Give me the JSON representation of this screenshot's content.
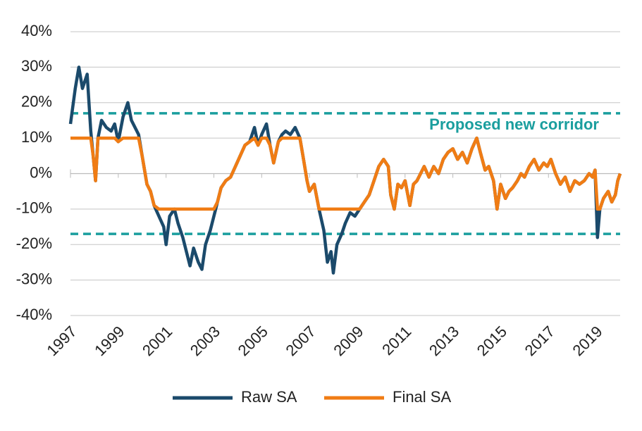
{
  "chart_data": {
    "type": "line",
    "x": [
      1997.0,
      1997.2,
      1997.35,
      1997.5,
      1997.7,
      1997.85,
      1997.95,
      1998.05,
      1998.15,
      1998.3,
      1998.5,
      1998.7,
      1998.85,
      1999.0,
      1999.2,
      1999.4,
      1999.55,
      1999.7,
      1999.85,
      2000.0,
      2000.2,
      2000.35,
      2000.5,
      2000.7,
      2000.9,
      2001.0,
      2001.15,
      2001.35,
      2001.5,
      2001.7,
      2001.85,
      2002.0,
      2002.15,
      2002.35,
      2002.5,
      2002.65,
      2002.85,
      2003.0,
      2003.15,
      2003.3,
      2003.5,
      2003.7,
      2003.9,
      2004.1,
      2004.3,
      2004.5,
      2004.7,
      2004.85,
      2005.0,
      2005.2,
      2005.35,
      2005.5,
      2005.7,
      2005.85,
      2006.0,
      2006.2,
      2006.4,
      2006.6,
      2006.75,
      2006.9,
      2007.0,
      2007.2,
      2007.4,
      2007.6,
      2007.75,
      2007.9,
      2008.0,
      2008.15,
      2008.35,
      2008.5,
      2008.7,
      2008.9,
      2009.1,
      2009.3,
      2009.5,
      2009.7,
      2009.9,
      2010.1,
      2010.3,
      2010.4,
      2010.55,
      2010.7,
      2010.85,
      2011.0,
      2011.2,
      2011.35,
      2011.5,
      2011.65,
      2011.8,
      2012.0,
      2012.2,
      2012.4,
      2012.6,
      2012.8,
      2013.0,
      2013.2,
      2013.4,
      2013.6,
      2013.8,
      2014.0,
      2014.15,
      2014.35,
      2014.5,
      2014.7,
      2014.85,
      2015.0,
      2015.2,
      2015.35,
      2015.5,
      2015.7,
      2015.85,
      2016.0,
      2016.2,
      2016.4,
      2016.6,
      2016.8,
      2016.95,
      2017.1,
      2017.3,
      2017.5,
      2017.7,
      2017.9,
      2018.1,
      2018.3,
      2018.5,
      2018.7,
      2018.85,
      2018.95,
      2019.05,
      2019.15,
      2019.3,
      2019.5,
      2019.65,
      2019.8,
      2019.9,
      2020.0
    ],
    "series": [
      {
        "name": "Raw SA",
        "color": "#1b4a6b",
        "values": [
          14,
          24,
          30,
          24,
          28,
          12,
          5,
          -2,
          10,
          15,
          13,
          12,
          14,
          9,
          16,
          20,
          15,
          13,
          11,
          5,
          -3,
          -5,
          -9,
          -12,
          -15,
          -20,
          -12,
          -10,
          -14,
          -18,
          -22,
          -26,
          -21,
          -25,
          -27,
          -20,
          -16,
          -12,
          -8,
          -4,
          -2,
          -1,
          2,
          5,
          8,
          9,
          13,
          8,
          11,
          14,
          8,
          3,
          9,
          11,
          12,
          11,
          13,
          10,
          4,
          -2,
          -5,
          -3,
          -10,
          -16,
          -25,
          -22,
          -28,
          -20,
          -17,
          -14,
          -11,
          -12,
          -10,
          -8,
          -6,
          -2,
          2,
          4,
          2,
          -6,
          -10,
          -3,
          -4,
          -2,
          -9,
          -3,
          -2,
          0,
          2,
          -1,
          2,
          0,
          4,
          6,
          7,
          4,
          6,
          3,
          7,
          10,
          6,
          1,
          2,
          -2,
          -10,
          -3,
          -7,
          -5,
          -4,
          -2,
          0,
          -1,
          2,
          4,
          1,
          3,
          2,
          4,
          0,
          -3,
          -1,
          -5,
          -2,
          -3,
          -2,
          0,
          -1,
          1,
          -18,
          -10,
          -7,
          -5,
          -8,
          -6,
          -2,
          0
        ]
      },
      {
        "name": "Final SA",
        "color": "#f07c14",
        "values": [
          10,
          10,
          10,
          10,
          10,
          10,
          5,
          -2,
          10,
          10,
          10,
          10,
          10,
          9,
          10,
          10,
          10,
          10,
          10,
          5,
          -3,
          -5,
          -9,
          -10,
          -10,
          -10,
          -10,
          -10,
          -10,
          -10,
          -10,
          -10,
          -10,
          -10,
          -10,
          -10,
          -10,
          -10,
          -8,
          -4,
          -2,
          -1,
          2,
          5,
          8,
          9,
          10,
          8,
          10,
          10,
          8,
          3,
          9,
          10,
          10,
          10,
          10,
          10,
          4,
          -2,
          -5,
          -3,
          -10,
          -10,
          -10,
          -10,
          -10,
          -10,
          -10,
          -10,
          -10,
          -10,
          -10,
          -8,
          -6,
          -2,
          2,
          4,
          2,
          -6,
          -10,
          -3,
          -4,
          -2,
          -9,
          -3,
          -2,
          0,
          2,
          -1,
          2,
          0,
          4,
          6,
          7,
          4,
          6,
          3,
          7,
          10,
          6,
          1,
          2,
          -2,
          -10,
          -3,
          -7,
          -5,
          -4,
          -2,
          0,
          -1,
          2,
          4,
          1,
          3,
          2,
          4,
          0,
          -3,
          -1,
          -5,
          -2,
          -3,
          -2,
          0,
          -1,
          1,
          -10,
          -10,
          -7,
          -5,
          -8,
          -6,
          -2,
          0
        ]
      }
    ],
    "xlim": [
      1997,
      2020
    ],
    "xticks": [
      1997,
      1999,
      2001,
      2003,
      2005,
      2007,
      2009,
      2011,
      2013,
      2015,
      2017,
      2019
    ],
    "ylim": [
      -40,
      40
    ],
    "yticks": [
      {
        "value": -40,
        "label": "-40%"
      },
      {
        "value": -30,
        "label": "-30%"
      },
      {
        "value": -20,
        "label": "-20%"
      },
      {
        "value": -10,
        "label": "-10%"
      },
      {
        "value": 0,
        "label": "0%"
      },
      {
        "value": 10,
        "label": "10%"
      },
      {
        "value": 20,
        "label": "20%"
      },
      {
        "value": 30,
        "label": "30%"
      },
      {
        "value": 40,
        "label": "40%"
      }
    ],
    "grid": true,
    "corridor": [
      17,
      -17
    ],
    "corridor_color": "#1a9e9e",
    "annotation": "Proposed new corridor",
    "legend": "bottom"
  }
}
